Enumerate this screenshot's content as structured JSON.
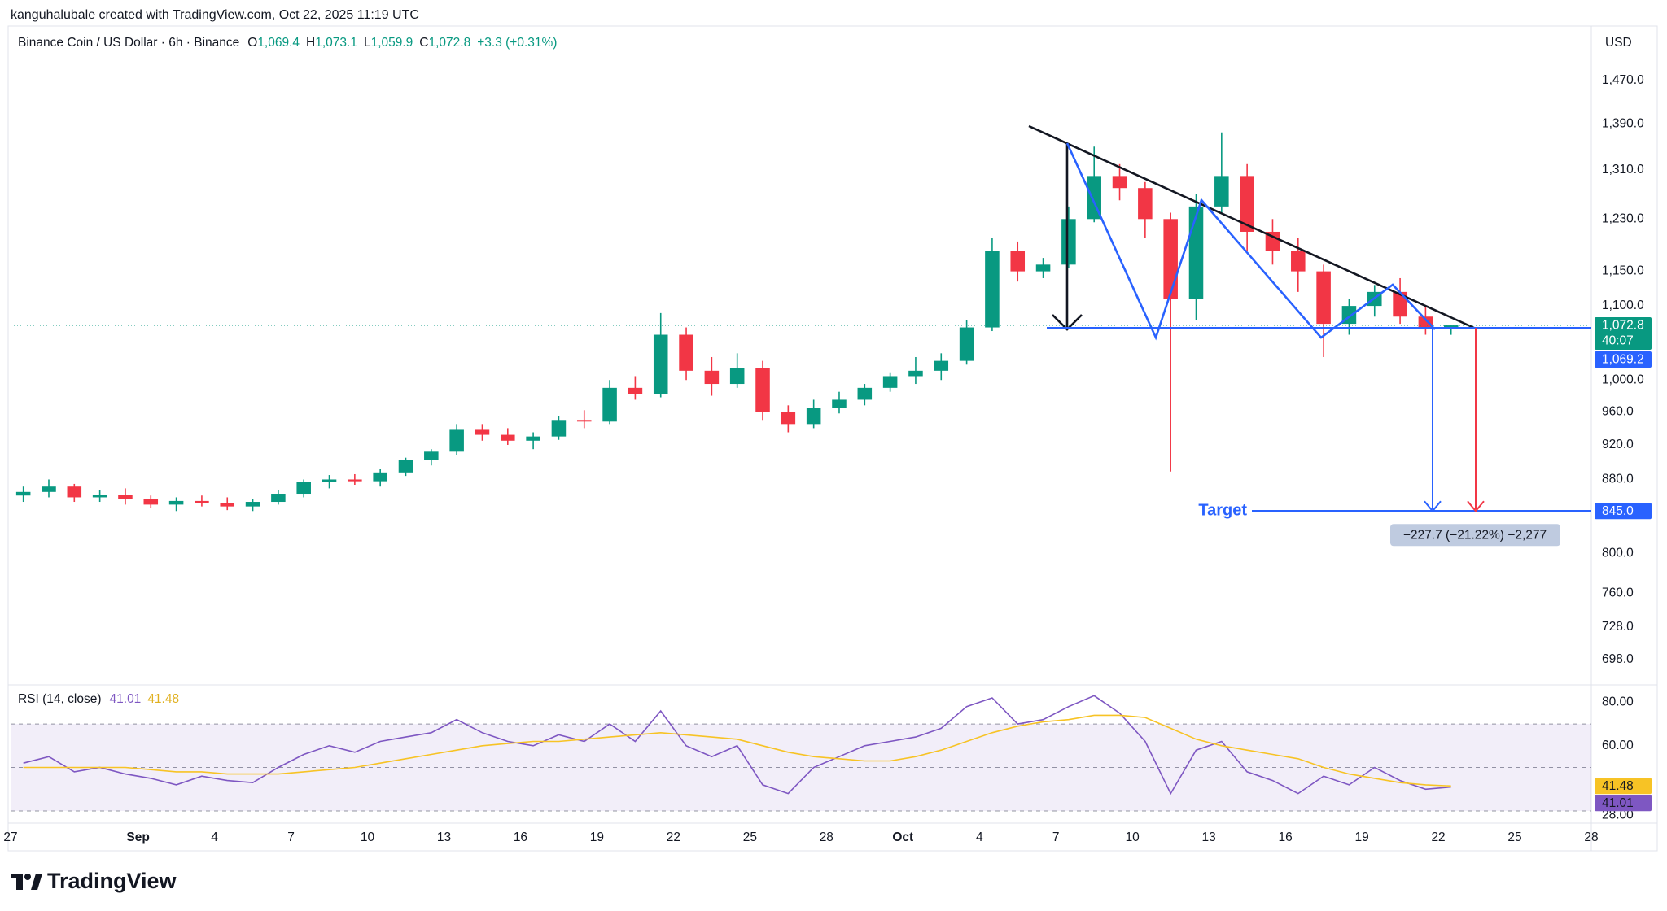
{
  "attribution": "kanguhalubale created with TradingView.com, Oct 22, 2025 11:19 UTC",
  "brand": "TradingView",
  "chart_data": [
    {
      "type": "candlestick",
      "title": "Binance Coin / US Dollar · 6h · Binance",
      "ohlc_legend": [
        [
          "O",
          "1,069.4"
        ],
        [
          "H",
          "1,073.1"
        ],
        [
          "L",
          "1,059.9"
        ],
        [
          "C",
          "1,072.8"
        ]
      ],
      "change": "+3.3 (+0.31%)",
      "currency": "USD",
      "up_color": "#089981",
      "down_color": "#f23645",
      "log": true,
      "x": [
        -5,
        -4,
        -3,
        -2,
        -1,
        0,
        1,
        2,
        3,
        4,
        5,
        6,
        7,
        8,
        9,
        10,
        11,
        12,
        13,
        14,
        15,
        16,
        17,
        18,
        19,
        20,
        21,
        22,
        23,
        24,
        25,
        26,
        27,
        28,
        29,
        30,
        31,
        32,
        33,
        34,
        35,
        36,
        37,
        38,
        39,
        40,
        41,
        42,
        43,
        44,
        45,
        46,
        47,
        48,
        49,
        50,
        51
      ],
      "ohlc": [
        [
          862,
          872,
          855,
          866
        ],
        [
          866,
          880,
          860,
          872
        ],
        [
          872,
          875,
          855,
          860
        ],
        [
          860,
          868,
          855,
          863
        ],
        [
          863,
          870,
          852,
          858
        ],
        [
          858,
          862,
          848,
          852
        ],
        [
          852,
          860,
          845,
          856
        ],
        [
          856,
          862,
          850,
          854
        ],
        [
          854,
          860,
          846,
          850
        ],
        [
          850,
          858,
          845,
          855
        ],
        [
          855,
          868,
          852,
          864
        ],
        [
          864,
          880,
          860,
          877
        ],
        [
          877,
          885,
          870,
          880
        ],
        [
          880,
          886,
          874,
          878
        ],
        [
          878,
          892,
          872,
          888
        ],
        [
          888,
          905,
          884,
          902
        ],
        [
          902,
          915,
          896,
          912
        ],
        [
          912,
          945,
          908,
          938
        ],
        [
          938,
          945,
          925,
          932
        ],
        [
          932,
          940,
          920,
          925
        ],
        [
          925,
          935,
          915,
          930
        ],
        [
          930,
          955,
          926,
          950
        ],
        [
          950,
          962,
          940,
          948
        ],
        [
          948,
          1000,
          945,
          990
        ],
        [
          990,
          1005,
          975,
          982
        ],
        [
          982,
          1090,
          978,
          1060
        ],
        [
          1060,
          1070,
          1000,
          1012
        ],
        [
          1012,
          1030,
          980,
          995
        ],
        [
          995,
          1035,
          990,
          1015
        ],
        [
          1015,
          1025,
          950,
          960
        ],
        [
          960,
          968,
          935,
          945
        ],
        [
          945,
          975,
          940,
          965
        ],
        [
          965,
          985,
          958,
          975
        ],
        [
          975,
          995,
          968,
          990
        ],
        [
          990,
          1010,
          985,
          1005
        ],
        [
          1005,
          1030,
          995,
          1012
        ],
        [
          1012,
          1035,
          1000,
          1025
        ],
        [
          1025,
          1080,
          1020,
          1070
        ],
        [
          1070,
          1200,
          1065,
          1180
        ],
        [
          1180,
          1195,
          1135,
          1150
        ],
        [
          1150,
          1170,
          1140,
          1160
        ],
        [
          1160,
          1250,
          1155,
          1230
        ],
        [
          1230,
          1350,
          1225,
          1300
        ],
        [
          1300,
          1320,
          1260,
          1280
        ],
        [
          1280,
          1290,
          1200,
          1230
        ],
        [
          1230,
          1240,
          889,
          1110
        ],
        [
          1110,
          1270,
          1080,
          1250
        ],
        [
          1250,
          1375,
          1240,
          1300
        ],
        [
          1300,
          1320,
          1180,
          1210
        ],
        [
          1210,
          1230,
          1160,
          1180
        ],
        [
          1180,
          1200,
          1120,
          1150
        ],
        [
          1150,
          1160,
          1030,
          1075
        ],
        [
          1075,
          1110,
          1060,
          1100
        ],
        [
          1100,
          1130,
          1085,
          1120
        ],
        [
          1120,
          1140,
          1075,
          1085
        ],
        [
          1085,
          1100,
          1060,
          1069.4
        ],
        [
          1069.4,
          1073.1,
          1059.9,
          1072.8
        ]
      ],
      "xlim": [
        -5,
        57
      ],
      "xticks": [
        {
          "value": -5,
          "label": "27"
        },
        {
          "value": 0,
          "label": "Sep"
        },
        {
          "value": 3,
          "label": "4"
        },
        {
          "value": 6,
          "label": "7"
        },
        {
          "value": 9,
          "label": "10"
        },
        {
          "value": 12,
          "label": "13"
        },
        {
          "value": 15,
          "label": "16"
        },
        {
          "value": 18,
          "label": "19"
        },
        {
          "value": 21,
          "label": "22"
        },
        {
          "value": 24,
          "label": "25"
        },
        {
          "value": 27,
          "label": "28"
        },
        {
          "value": 30,
          "label": "Oct"
        },
        {
          "value": 33,
          "label": "4"
        },
        {
          "value": 36,
          "label": "7"
        },
        {
          "value": 39,
          "label": "10"
        },
        {
          "value": 42,
          "label": "13"
        },
        {
          "value": 45,
          "label": "16"
        },
        {
          "value": 48,
          "label": "19"
        },
        {
          "value": 51,
          "label": "22"
        },
        {
          "value": 54,
          "label": "25"
        },
        {
          "value": 57,
          "label": "28"
        }
      ],
      "ylim": [
        680,
        1523
      ],
      "yticks": [
        {
          "value": 1470,
          "label": "1,470.0"
        },
        {
          "value": 1390,
          "label": "1,390.0"
        },
        {
          "value": 1310,
          "label": "1,310.0"
        },
        {
          "value": 1230,
          "label": "1,230.0"
        },
        {
          "value": 1150,
          "label": "1,150.0"
        },
        {
          "value": 1100,
          "label": "1,100.0"
        },
        {
          "value": 1000,
          "label": "1,000.0"
        },
        {
          "value": 960,
          "label": "960.0"
        },
        {
          "value": 920,
          "label": "920.0"
        },
        {
          "value": 880,
          "label": "880.0"
        },
        {
          "value": 800,
          "label": "800.0"
        },
        {
          "value": 760,
          "label": "760.0"
        },
        {
          "value": 728,
          "label": "728.0"
        },
        {
          "value": 698,
          "label": "698.0"
        }
      ],
      "price_lines": [
        {
          "value": 1072.8,
          "label": "1,072.8",
          "color": "#089981",
          "countdown": "40:07"
        },
        {
          "value": 1069.2,
          "label": "1,069.2",
          "color": "#2962ff"
        },
        {
          "value": 845,
          "label": "845.0",
          "color": "#2962ff"
        }
      ],
      "target_label": "Target",
      "measure": "−227.7 (−21.22%) −2,277"
    },
    {
      "type": "line",
      "title": "RSI (14, close)",
      "series": [
        {
          "color": "#7e57c2",
          "values": [
            52,
            55,
            48,
            50,
            47,
            45,
            42,
            46,
            44,
            43,
            50,
            56,
            60,
            57,
            62,
            64,
            66,
            72,
            66,
            62,
            60,
            65,
            62,
            70,
            62,
            76,
            60,
            55,
            60,
            42,
            38,
            50,
            55,
            60,
            62,
            64,
            68,
            78,
            82,
            70,
            72,
            78,
            83,
            75,
            62,
            38,
            58,
            62,
            48,
            44,
            38,
            46,
            42,
            50,
            44,
            40,
            41.01
          ]
        },
        {
          "color": "#f7c325",
          "values": [
            50,
            50,
            50,
            50,
            50,
            49,
            48,
            48,
            47,
            47,
            47,
            48,
            49,
            50,
            52,
            54,
            56,
            58,
            60,
            61,
            62,
            62,
            63,
            64,
            65,
            66,
            65,
            64,
            63,
            60,
            57,
            55,
            54,
            53,
            53,
            55,
            58,
            62,
            66,
            69,
            71,
            72,
            74,
            74,
            73,
            68,
            63,
            60,
            58,
            56,
            54,
            50,
            47,
            45,
            43,
            42,
            41.48
          ]
        }
      ],
      "ylim": [
        27,
        85
      ],
      "yticks": [
        {
          "value": 80,
          "label": "80.00"
        },
        {
          "value": 60,
          "label": "60.00"
        },
        {
          "value": 28,
          "label": "28.00"
        }
      ],
      "levels": [
        70,
        50,
        30
      ]
    }
  ]
}
